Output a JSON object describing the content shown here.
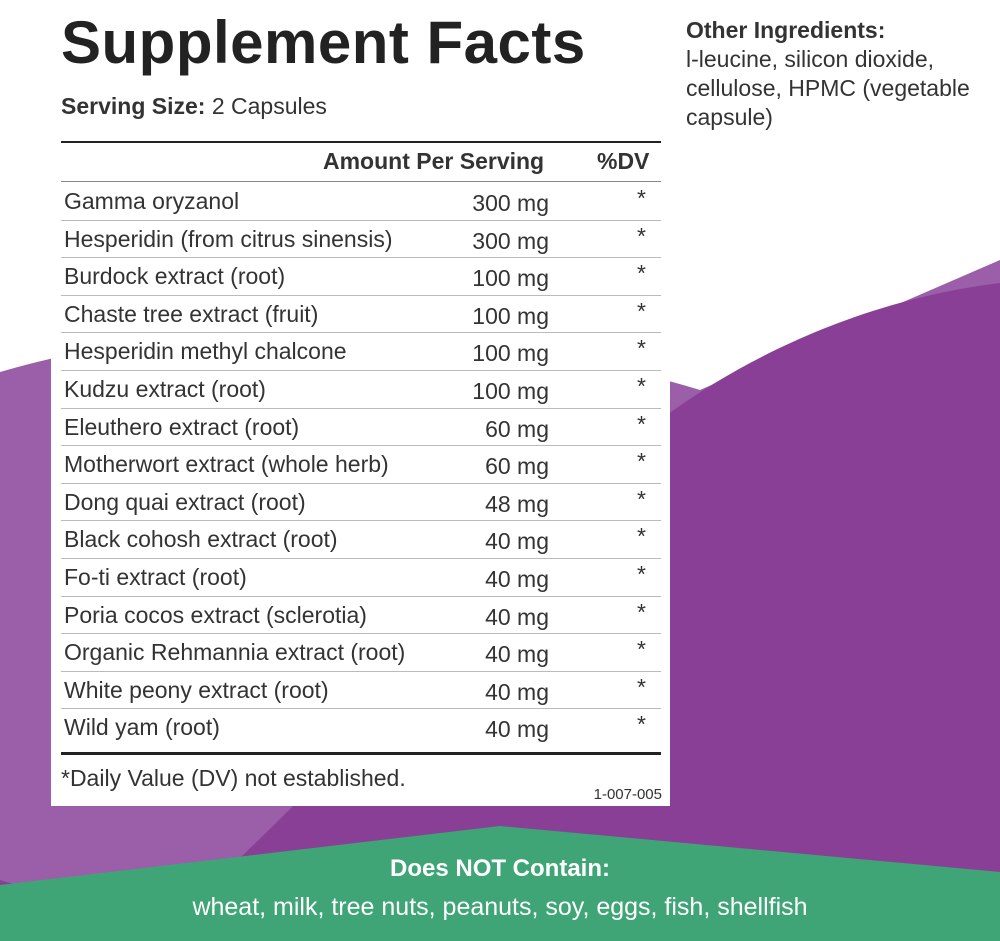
{
  "title": "Supplement Facts",
  "serving": {
    "label": "Serving Size:",
    "value": "2 Capsules"
  },
  "headers": {
    "amount": "Amount Per Serving",
    "dv": "%DV"
  },
  "ingredients": [
    {
      "name": "Gamma oryzanol",
      "amount": "300 mg",
      "dv": "*"
    },
    {
      "name": "Hesperidin (from citrus sinensis)",
      "amount": "300 mg",
      "dv": "*"
    },
    {
      "name": "Burdock extract (root)",
      "amount": "100 mg",
      "dv": "*"
    },
    {
      "name": "Chaste tree extract (fruit)",
      "amount": "100 mg",
      "dv": "*"
    },
    {
      "name": "Hesperidin methyl chalcone",
      "amount": "100 mg",
      "dv": "*"
    },
    {
      "name": "Kudzu extract (root)",
      "amount": "100 mg",
      "dv": "*"
    },
    {
      "name": "Eleuthero extract (root)",
      "amount": "60 mg",
      "dv": "*"
    },
    {
      "name": "Motherwort extract (whole herb)",
      "amount": "60 mg",
      "dv": "*"
    },
    {
      "name": "Dong quai extract (root)",
      "amount": "48 mg",
      "dv": "*"
    },
    {
      "name": "Black cohosh extract (root)",
      "amount": "40 mg",
      "dv": "*"
    },
    {
      "name": "Fo-ti extract (root)",
      "amount": "40 mg",
      "dv": "*"
    },
    {
      "name": "Poria cocos extract (sclerotia)",
      "amount": "40 mg",
      "dv": "*"
    },
    {
      "name": "Organic Rehmannia extract (root)",
      "amount": "40 mg",
      "dv": "*"
    },
    {
      "name": "White peony extract (root)",
      "amount": "40 mg",
      "dv": "*"
    },
    {
      "name": "Wild yam (root)",
      "amount": "40 mg",
      "dv": "*"
    }
  ],
  "footnote": "*Daily Value (DV) not established.",
  "code": "1-007-005",
  "other_ingredients": {
    "title": "Other Ingredients:",
    "text": "l-leucine, silicon dioxide, cellulose, HPMC (vegetable capsule)"
  },
  "does_not_contain": {
    "title": "Does NOT Contain:",
    "text": "wheat, milk, tree nuts, peanuts, soy, eggs, fish, shellfish"
  },
  "colors": {
    "light_purple": "#9a5fa8",
    "dark_purple": "#8a3f96",
    "green": "#3fa577"
  }
}
